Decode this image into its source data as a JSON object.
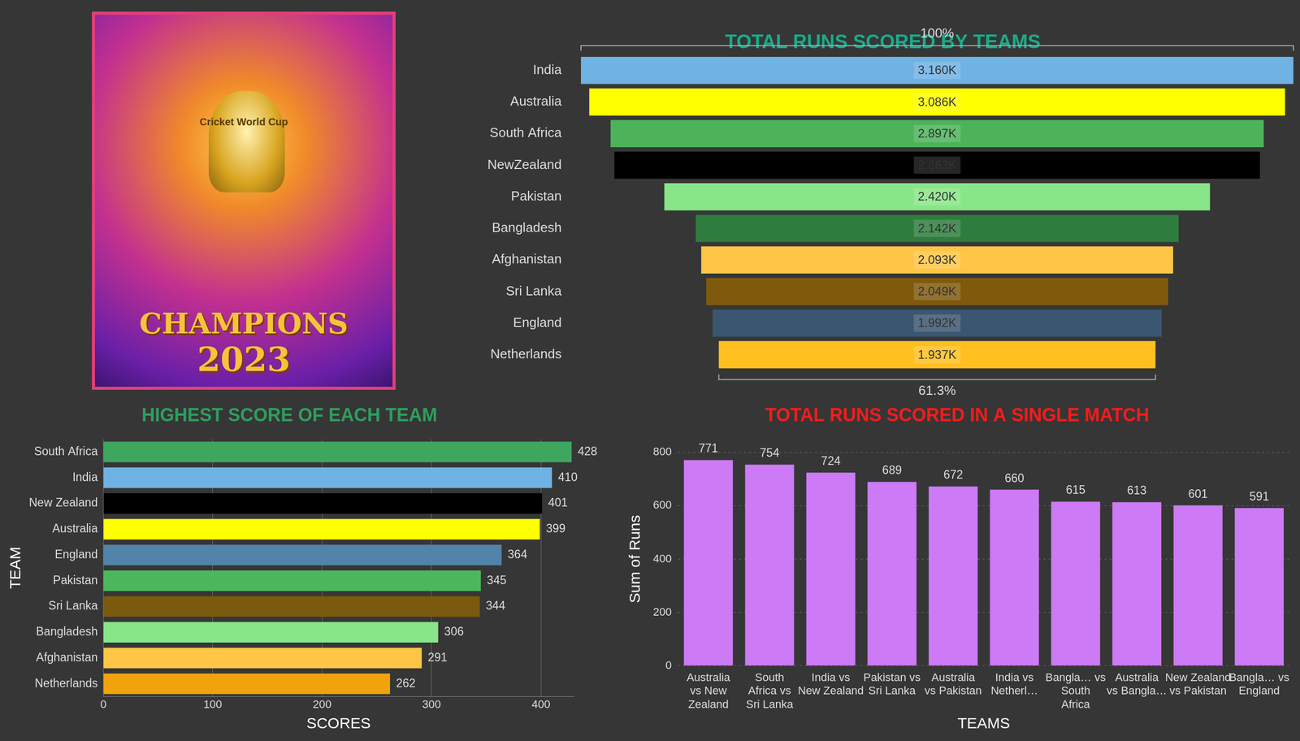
{
  "poster": {
    "badge": "Cricket World Cup",
    "title": "CHAMPIONS",
    "year": "2023"
  },
  "chart_data": [
    {
      "type": "funnel",
      "title": "TOTAL RUNS SCORED BY TEAMS",
      "orientation": "horizontal",
      "categories": [
        "India",
        "Australia",
        "South Africa",
        "NewZealand",
        "Pakistan",
        "Bangladesh",
        "Afghanistan",
        "Sri Lanka",
        "England",
        "Netherlands"
      ],
      "values": [
        3160,
        3086,
        2897,
        2863,
        2420,
        2142,
        2093,
        2049,
        1992,
        1937
      ],
      "value_labels": [
        "3.160K",
        "3.086K",
        "2.897K",
        "2.863K",
        "2.420K",
        "2.142K",
        "2.093K",
        "2.049K",
        "1.992K",
        "1.937K"
      ],
      "colors": [
        "#6fb2e4",
        "#ffff00",
        "#4cb35a",
        "#000000",
        "#88e688",
        "#2e7d3e",
        "#ffc546",
        "#7f5a0c",
        "#3b5670",
        "#ffc01f"
      ],
      "annotations": [
        "100%",
        "61.3%"
      ],
      "data_labels": true,
      "tick_labels": "y",
      "grid": false
    },
    {
      "type": "bar",
      "title": "HIGHEST SCORE OF EACH TEAM",
      "orientation": "horizontal",
      "x_label": "SCORES",
      "y_label": "TEAM",
      "categories": [
        "South Africa",
        "India",
        "New Zealand",
        "Australia",
        "England",
        "Pakistan",
        "Sri Lanka",
        "Bangladesh",
        "Afghanistan",
        "Netherlands"
      ],
      "values": [
        428,
        410,
        401,
        399,
        364,
        345,
        344,
        306,
        291,
        262
      ],
      "colors": [
        "#3ea65f",
        "#6fb2e4",
        "#000000",
        "#ffff00",
        "#5283a9",
        "#4cb85c",
        "#7a5a0e",
        "#88e688",
        "#ffc546",
        "#f0a30a"
      ],
      "xlim": [
        0,
        430
      ],
      "xticks": [
        0,
        100,
        200,
        300,
        400
      ],
      "grid": true,
      "data_labels": true
    },
    {
      "type": "bar",
      "title": "TOTAL RUNS SCORED IN A SINGLE MATCH",
      "x_label": "TEAMS",
      "y_label": "Sum of Runs",
      "categories": [
        "Australia vs New Zealand",
        "South Africa vs Sri Lanka",
        "India vs New Zealand",
        "Pakistan vs Sri Lanka",
        "Australia vs Pakistan",
        "India vs Netherl…",
        "Bangla… vs South Africa",
        "Australia vs Bangla…",
        "New Zealand vs Pakistan",
        "Bangla… vs England"
      ],
      "values": [
        771,
        754,
        724,
        689,
        672,
        660,
        615,
        613,
        601,
        591
      ],
      "color": "#cc7af5",
      "ylim": [
        0,
        800
      ],
      "yticks": [
        0,
        200,
        400,
        600,
        800
      ],
      "grid": true,
      "data_labels": true
    }
  ]
}
